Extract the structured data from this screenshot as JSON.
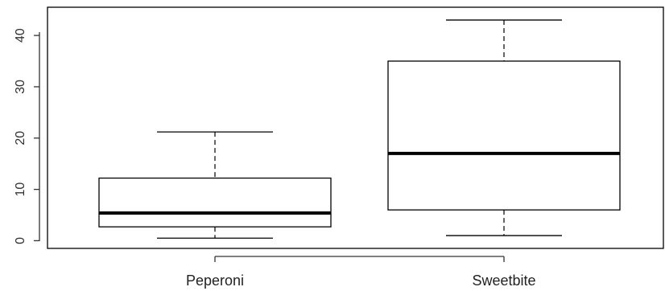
{
  "chart_data": {
    "type": "boxplot",
    "title": "",
    "xlabel": "",
    "ylabel": "",
    "ylim": [
      -1.5,
      45.5
    ],
    "yticks": [
      0,
      10,
      20,
      30,
      40
    ],
    "grid": false,
    "categories": [
      "Peperoni",
      "Sweetbite"
    ],
    "boxes": [
      {
        "name": "Peperoni",
        "whisker_low": 0.5,
        "q1": 2.7,
        "median": 5.4,
        "q3": 12.2,
        "whisker_high": 21.2
      },
      {
        "name": "Sweetbite",
        "whisker_low": 1.0,
        "q1": 6.0,
        "median": 17.0,
        "q3": 35.0,
        "whisker_high": 43.0
      }
    ]
  }
}
